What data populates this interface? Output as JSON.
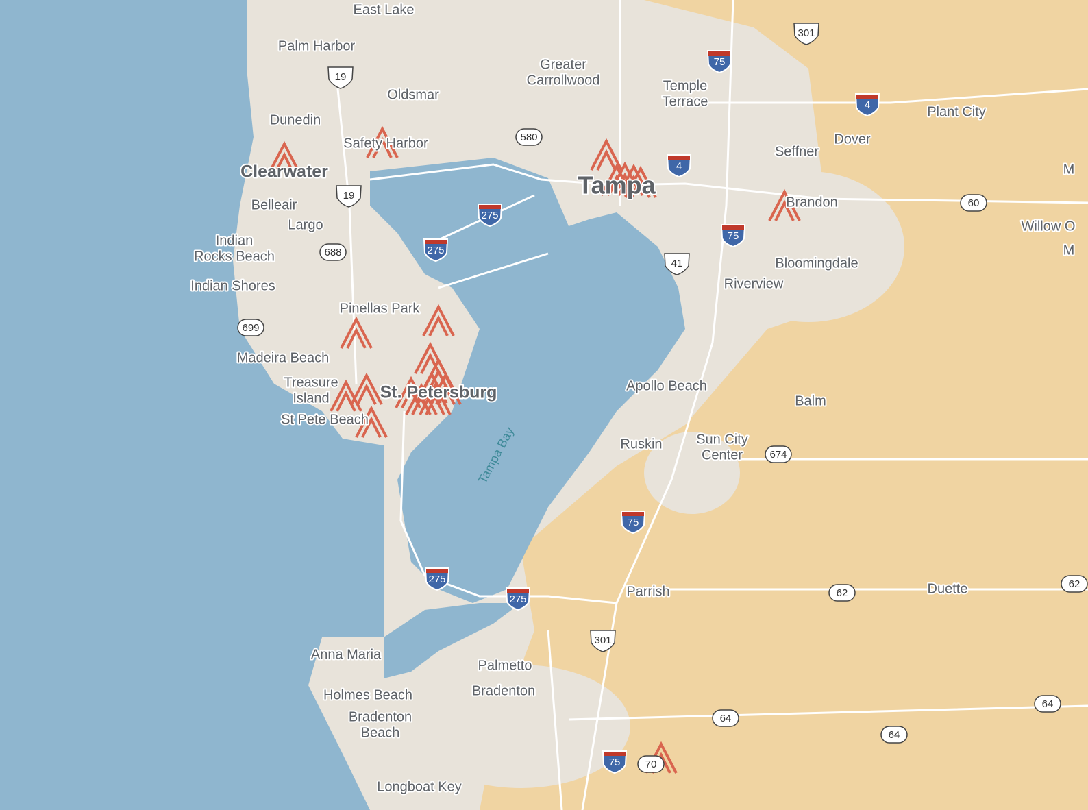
{
  "places": [
    {
      "lines": [
        "East Lake"
      ]
    },
    {
      "lines": [
        "Palm Harbor"
      ]
    },
    {
      "lines": [
        "Oldsmar"
      ]
    },
    {
      "lines": [
        "Greater",
        "Carrollwood"
      ]
    },
    {
      "lines": [
        "Temple",
        "Terrace"
      ]
    },
    {
      "lines": [
        "Dunedin"
      ]
    },
    {
      "lines": [
        "Safety Harbor"
      ]
    },
    {
      "lines": [
        "Clearwater"
      ]
    },
    {
      "lines": [
        "Tampa"
      ]
    },
    {
      "lines": [
        "Seffner"
      ]
    },
    {
      "lines": [
        "Dover"
      ]
    },
    {
      "lines": [
        "Plant City"
      ]
    },
    {
      "lines": [
        "Brandon"
      ]
    },
    {
      "lines": [
        "Willow O"
      ]
    },
    {
      "lines": [
        "M"
      ]
    },
    {
      "lines": [
        "M"
      ]
    },
    {
      "lines": [
        "Belleair"
      ]
    },
    {
      "lines": [
        "Largo"
      ]
    },
    {
      "lines": [
        "Indian",
        "Rocks Beach"
      ]
    },
    {
      "lines": [
        "Indian Shores"
      ]
    },
    {
      "lines": [
        "Bloomingdale"
      ]
    },
    {
      "lines": [
        "Riverview"
      ]
    },
    {
      "lines": [
        "Pinellas Park"
      ]
    },
    {
      "lines": [
        "Madeira Beach"
      ]
    },
    {
      "lines": [
        "Treasure",
        "Island"
      ]
    },
    {
      "lines": [
        "St. Petersburg"
      ]
    },
    {
      "lines": [
        "St Pete Beach"
      ]
    },
    {
      "lines": [
        "Apollo Beach"
      ]
    },
    {
      "lines": [
        "Balm"
      ]
    },
    {
      "lines": [
        "Ruskin"
      ]
    },
    {
      "lines": [
        "Sun City",
        "Center"
      ]
    },
    {
      "lines": [
        "Parrish"
      ]
    },
    {
      "lines": [
        "Duette"
      ]
    },
    {
      "lines": [
        "Anna Maria"
      ]
    },
    {
      "lines": [
        "Palmetto"
      ]
    },
    {
      "lines": [
        "Bradenton"
      ]
    },
    {
      "lines": [
        "Holmes Beach"
      ]
    },
    {
      "lines": [
        "Bradenton",
        "Beach"
      ]
    },
    {
      "lines": [
        "Longboat Key"
      ]
    }
  ],
  "shields": [
    "301",
    "75",
    "19",
    "580",
    "4",
    "4",
    "19",
    "275",
    "275",
    "60",
    "75",
    "688",
    "41",
    "699",
    "674",
    "75",
    "275",
    "275",
    "62",
    "62",
    "301",
    "64",
    "64",
    "64",
    "75",
    "70"
  ],
  "water_labels": [
    "Tampa Bay"
  ]
}
